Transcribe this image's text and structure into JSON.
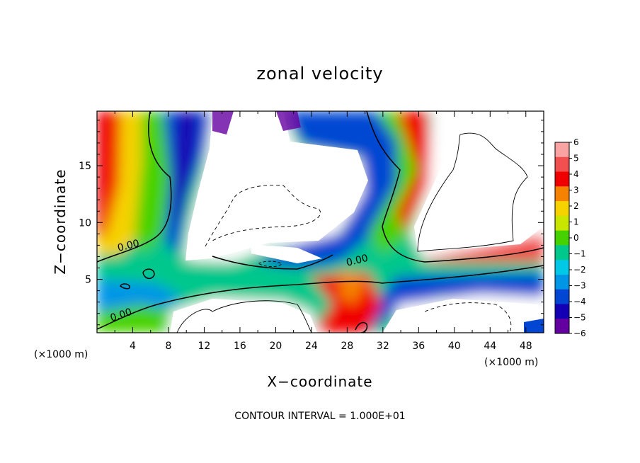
{
  "chart_data": {
    "type": "heatmap",
    "title": "zonal velocity",
    "xlabel": "X−coordinate",
    "ylabel": "Z−coordinate",
    "x_unit_left": "(×1000 m)",
    "x_unit_right": "(×1000 m)",
    "xlim": [
      0,
      50
    ],
    "ylim": [
      0.3,
      19.8
    ],
    "x_ticks": [
      4,
      8,
      12,
      16,
      20,
      24,
      28,
      32,
      36,
      40,
      44,
      48
    ],
    "y_ticks": [
      5,
      10,
      15
    ],
    "colorbar": {
      "levels": [
        6,
        5,
        4,
        3,
        2,
        1,
        0,
        -1,
        -2,
        -3,
        -4,
        -5,
        -6
      ],
      "labels": [
        "6",
        "5",
        "4",
        "3",
        "2",
        "1",
        "0",
        "−1",
        "−2",
        "−3",
        "−4",
        "−5",
        "−6"
      ],
      "colors": [
        "#f9a3a3",
        "#f25050",
        "#f00000",
        "#f58200",
        "#f5d200",
        "#c8e600",
        "#46d200",
        "#00c88c",
        "#00c8e6",
        "#0096e6",
        "#0046d2",
        "#1400b4",
        "#6400a0"
      ]
    },
    "contour_labels": [
      {
        "text": "0.00",
        "x": 3.6,
        "z": 7.7
      },
      {
        "text": "0.00",
        "x": 29.2,
        "z": 6.4
      },
      {
        "text": "0.00",
        "x": 2.8,
        "z": 1.6
      }
    ],
    "grid": false,
    "note_text": "CONTOUR INTERVAL = 1.000E+01"
  }
}
